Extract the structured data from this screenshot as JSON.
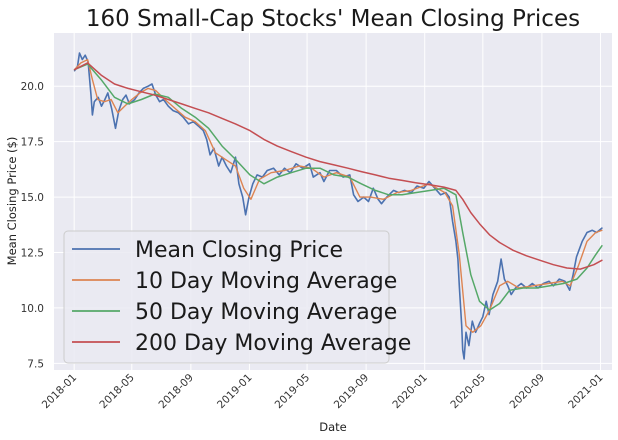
{
  "chart_data": {
    "type": "line",
    "title": "160 Small-Cap Stocks' Mean Closing Prices",
    "xlabel": "Date",
    "ylabel": "Mean Closing Price ($)",
    "xlim": [
      "2017-11-20",
      "2021-01-25"
    ],
    "ylim": [
      7.2,
      22.4
    ],
    "x_ticks": [
      "2018-01",
      "2018-05",
      "2018-09",
      "2019-01",
      "2019-05",
      "2019-09",
      "2020-01",
      "2020-05",
      "2020-09",
      "2021-01"
    ],
    "y_ticks": [
      "7.5",
      "10.0",
      "12.5",
      "15.0",
      "17.5",
      "20.0"
    ],
    "grid": true,
    "legend_position": "lower-left",
    "background": "#eaeaf2",
    "series": [
      {
        "name": "Mean Closing Price",
        "color": "#4c72b0",
        "width": 1.6,
        "points": [
          [
            "2018-01-02",
            20.7
          ],
          [
            "2018-01-08",
            20.9
          ],
          [
            "2018-01-12",
            21.5
          ],
          [
            "2018-01-18",
            21.2
          ],
          [
            "2018-01-24",
            21.4
          ],
          [
            "2018-01-30",
            21.1
          ],
          [
            "2018-02-05",
            19.6
          ],
          [
            "2018-02-08",
            18.7
          ],
          [
            "2018-02-12",
            19.3
          ],
          [
            "2018-02-20",
            19.5
          ],
          [
            "2018-02-27",
            19.1
          ],
          [
            "2018-03-06",
            19.4
          ],
          [
            "2018-03-12",
            19.7
          ],
          [
            "2018-03-20",
            19.0
          ],
          [
            "2018-03-28",
            18.1
          ],
          [
            "2018-04-04",
            18.9
          ],
          [
            "2018-04-12",
            19.4
          ],
          [
            "2018-04-19",
            19.6
          ],
          [
            "2018-04-26",
            19.2
          ],
          [
            "2018-05-07",
            19.4
          ],
          [
            "2018-05-16",
            19.7
          ],
          [
            "2018-05-25",
            19.9
          ],
          [
            "2018-06-04",
            20.0
          ],
          [
            "2018-06-12",
            20.1
          ],
          [
            "2018-06-20",
            19.6
          ],
          [
            "2018-06-28",
            19.3
          ],
          [
            "2018-07-06",
            19.4
          ],
          [
            "2018-07-16",
            19.1
          ],
          [
            "2018-07-26",
            18.9
          ],
          [
            "2018-08-06",
            18.8
          ],
          [
            "2018-08-16",
            18.6
          ],
          [
            "2018-08-27",
            18.3
          ],
          [
            "2018-09-06",
            18.4
          ],
          [
            "2018-09-17",
            18.2
          ],
          [
            "2018-09-27",
            18.0
          ],
          [
            "2018-10-04",
            17.6
          ],
          [
            "2018-10-11",
            16.9
          ],
          [
            "2018-10-19",
            17.2
          ],
          [
            "2018-10-29",
            16.4
          ],
          [
            "2018-11-05",
            16.8
          ],
          [
            "2018-11-14",
            16.4
          ],
          [
            "2018-11-23",
            16.1
          ],
          [
            "2018-12-03",
            16.8
          ],
          [
            "2018-12-10",
            15.6
          ],
          [
            "2018-12-18",
            15.0
          ],
          [
            "2018-12-24",
            14.2
          ],
          [
            "2018-12-31",
            15.0
          ],
          [
            "2019-01-08",
            15.6
          ],
          [
            "2019-01-17",
            16.0
          ],
          [
            "2019-01-28",
            15.9
          ],
          [
            "2019-02-07",
            16.2
          ],
          [
            "2019-02-20",
            16.3
          ],
          [
            "2019-03-04",
            16.0
          ],
          [
            "2019-03-15",
            16.3
          ],
          [
            "2019-03-27",
            16.1
          ],
          [
            "2019-04-08",
            16.5
          ],
          [
            "2019-04-22",
            16.3
          ],
          [
            "2019-05-06",
            16.5
          ],
          [
            "2019-05-14",
            15.9
          ],
          [
            "2019-05-28",
            16.1
          ],
          [
            "2019-06-05",
            15.7
          ],
          [
            "2019-06-17",
            16.2
          ],
          [
            "2019-07-01",
            16.2
          ],
          [
            "2019-07-15",
            15.9
          ],
          [
            "2019-07-29",
            16.0
          ],
          [
            "2019-08-06",
            15.1
          ],
          [
            "2019-08-15",
            14.8
          ],
          [
            "2019-08-27",
            15.0
          ],
          [
            "2019-09-06",
            14.8
          ],
          [
            "2019-09-16",
            15.4
          ],
          [
            "2019-09-26",
            14.9
          ],
          [
            "2019-10-03",
            14.7
          ],
          [
            "2019-10-14",
            15.0
          ],
          [
            "2019-10-28",
            15.3
          ],
          [
            "2019-11-08",
            15.2
          ],
          [
            "2019-11-20",
            15.3
          ],
          [
            "2019-12-04",
            15.2
          ],
          [
            "2019-12-16",
            15.5
          ],
          [
            "2019-12-30",
            15.4
          ],
          [
            "2020-01-10",
            15.7
          ],
          [
            "2020-01-22",
            15.4
          ],
          [
            "2020-02-03",
            15.1
          ],
          [
            "2020-02-14",
            15.2
          ],
          [
            "2020-02-21",
            15.0
          ],
          [
            "2020-02-28",
            13.9
          ],
          [
            "2020-03-06",
            13.0
          ],
          [
            "2020-03-10",
            12.2
          ],
          [
            "2020-03-13",
            11.0
          ],
          [
            "2020-03-18",
            9.2
          ],
          [
            "2020-03-20",
            8.1
          ],
          [
            "2020-03-23",
            7.7
          ],
          [
            "2020-03-27",
            8.9
          ],
          [
            "2020-04-02",
            8.3
          ],
          [
            "2020-04-09",
            9.4
          ],
          [
            "2020-04-16",
            8.9
          ],
          [
            "2020-04-24",
            9.3
          ],
          [
            "2020-05-01",
            9.6
          ],
          [
            "2020-05-08",
            10.3
          ],
          [
            "2020-05-14",
            9.7
          ],
          [
            "2020-05-22",
            10.6
          ],
          [
            "2020-06-01",
            11.2
          ],
          [
            "2020-06-08",
            12.2
          ],
          [
            "2020-06-15",
            11.3
          ],
          [
            "2020-06-22",
            11.0
          ],
          [
            "2020-06-29",
            10.6
          ],
          [
            "2020-07-08",
            10.9
          ],
          [
            "2020-07-20",
            11.1
          ],
          [
            "2020-07-31",
            10.9
          ],
          [
            "2020-08-12",
            11.1
          ],
          [
            "2020-08-24",
            10.9
          ],
          [
            "2020-09-04",
            11.1
          ],
          [
            "2020-09-16",
            11.2
          ],
          [
            "2020-09-25",
            11.0
          ],
          [
            "2020-10-07",
            11.3
          ],
          [
            "2020-10-19",
            11.2
          ],
          [
            "2020-10-29",
            10.8
          ],
          [
            "2020-11-05",
            11.5
          ],
          [
            "2020-11-12",
            12.3
          ],
          [
            "2020-11-24",
            13.0
          ],
          [
            "2020-12-04",
            13.4
          ],
          [
            "2020-12-15",
            13.5
          ],
          [
            "2020-12-24",
            13.4
          ],
          [
            "2021-01-04",
            13.6
          ]
        ]
      },
      {
        "name": "10 Day Moving Average",
        "color": "#dd8452",
        "width": 1.4,
        "points": [
          [
            "2018-01-02",
            20.75
          ],
          [
            "2018-01-15",
            21.05
          ],
          [
            "2018-01-29",
            21.2
          ],
          [
            "2018-02-08",
            20.3
          ],
          [
            "2018-02-19",
            19.4
          ],
          [
            "2018-03-05",
            19.3
          ],
          [
            "2018-03-19",
            19.4
          ],
          [
            "2018-04-02",
            18.8
          ],
          [
            "2018-04-16",
            19.1
          ],
          [
            "2018-05-01",
            19.4
          ],
          [
            "2018-05-18",
            19.7
          ],
          [
            "2018-06-04",
            19.9
          ],
          [
            "2018-06-20",
            19.8
          ],
          [
            "2018-07-09",
            19.4
          ],
          [
            "2018-07-30",
            19.0
          ],
          [
            "2018-08-20",
            18.6
          ],
          [
            "2018-09-10",
            18.4
          ],
          [
            "2018-10-01",
            18.0
          ],
          [
            "2018-10-22",
            17.0
          ],
          [
            "2018-11-12",
            16.7
          ],
          [
            "2018-12-03",
            16.4
          ],
          [
            "2018-12-20",
            15.4
          ],
          [
            "2019-01-04",
            14.9
          ],
          [
            "2019-01-22",
            15.8
          ],
          [
            "2019-02-15",
            16.1
          ],
          [
            "2019-03-15",
            16.2
          ],
          [
            "2019-04-15",
            16.4
          ],
          [
            "2019-05-10",
            16.3
          ],
          [
            "2019-06-05",
            15.9
          ],
          [
            "2019-07-01",
            16.1
          ],
          [
            "2019-07-29",
            15.9
          ],
          [
            "2019-08-19",
            15.0
          ],
          [
            "2019-09-10",
            15.0
          ],
          [
            "2019-10-07",
            14.9
          ],
          [
            "2019-11-04",
            15.2
          ],
          [
            "2019-12-04",
            15.3
          ],
          [
            "2020-01-10",
            15.6
          ],
          [
            "2020-02-12",
            15.2
          ],
          [
            "2020-02-28",
            14.6
          ],
          [
            "2020-03-13",
            12.4
          ],
          [
            "2020-03-27",
            9.2
          ],
          [
            "2020-04-10",
            8.9
          ],
          [
            "2020-04-27",
            9.2
          ],
          [
            "2020-05-15",
            9.9
          ],
          [
            "2020-06-05",
            11.0
          ],
          [
            "2020-06-22",
            11.2
          ],
          [
            "2020-07-15",
            10.9
          ],
          [
            "2020-08-14",
            11.0
          ],
          [
            "2020-09-14",
            11.1
          ],
          [
            "2020-10-14",
            11.2
          ],
          [
            "2020-10-30",
            11.0
          ],
          [
            "2020-11-16",
            11.9
          ],
          [
            "2020-12-04",
            13.0
          ],
          [
            "2020-12-22",
            13.4
          ],
          [
            "2021-01-04",
            13.5
          ]
        ]
      },
      {
        "name": "50 Day Moving Average",
        "color": "#55a868",
        "width": 1.5,
        "points": [
          [
            "2018-01-02",
            20.75
          ],
          [
            "2018-01-29",
            21.0
          ],
          [
            "2018-02-26",
            20.3
          ],
          [
            "2018-03-26",
            19.5
          ],
          [
            "2018-04-23",
            19.2
          ],
          [
            "2018-05-21",
            19.4
          ],
          [
            "2018-06-18",
            19.65
          ],
          [
            "2018-07-16",
            19.5
          ],
          [
            "2018-08-13",
            19.0
          ],
          [
            "2018-09-10",
            18.6
          ],
          [
            "2018-10-08",
            18.1
          ],
          [
            "2018-11-05",
            17.3
          ],
          [
            "2018-12-03",
            16.7
          ],
          [
            "2019-01-02",
            16.0
          ],
          [
            "2019-01-31",
            15.6
          ],
          [
            "2019-02-28",
            15.9
          ],
          [
            "2019-03-29",
            16.1
          ],
          [
            "2019-04-29",
            16.3
          ],
          [
            "2019-05-28",
            16.3
          ],
          [
            "2019-06-26",
            16.0
          ],
          [
            "2019-07-25",
            15.9
          ],
          [
            "2019-08-22",
            15.6
          ],
          [
            "2019-09-20",
            15.3
          ],
          [
            "2019-10-18",
            15.1
          ],
          [
            "2019-11-15",
            15.1
          ],
          [
            "2019-12-13",
            15.2
          ],
          [
            "2020-01-13",
            15.3
          ],
          [
            "2020-02-10",
            15.4
          ],
          [
            "2020-03-06",
            15.1
          ],
          [
            "2020-03-20",
            13.4
          ],
          [
            "2020-04-06",
            11.5
          ],
          [
            "2020-04-24",
            10.3
          ],
          [
            "2020-05-15",
            9.9
          ],
          [
            "2020-06-05",
            10.2
          ],
          [
            "2020-06-26",
            10.8
          ],
          [
            "2020-07-24",
            10.9
          ],
          [
            "2020-08-21",
            10.9
          ],
          [
            "2020-09-18",
            11.0
          ],
          [
            "2020-10-16",
            11.1
          ],
          [
            "2020-11-13",
            11.3
          ],
          [
            "2020-12-04",
            11.8
          ],
          [
            "2020-12-22",
            12.4
          ],
          [
            "2021-01-04",
            12.8
          ]
        ]
      },
      {
        "name": "200 Day Moving Average",
        "color": "#c44e52",
        "width": 1.5,
        "points": [
          [
            "2018-01-02",
            20.75
          ],
          [
            "2018-01-29",
            21.05
          ],
          [
            "2018-02-26",
            20.5
          ],
          [
            "2018-03-26",
            20.1
          ],
          [
            "2018-04-23",
            19.9
          ],
          [
            "2018-05-21",
            19.75
          ],
          [
            "2018-06-18",
            19.6
          ],
          [
            "2018-07-16",
            19.4
          ],
          [
            "2018-08-13",
            19.2
          ],
          [
            "2018-09-10",
            19.0
          ],
          [
            "2018-10-08",
            18.8
          ],
          [
            "2018-11-05",
            18.55
          ],
          [
            "2018-12-03",
            18.3
          ],
          [
            "2019-01-02",
            18.0
          ],
          [
            "2019-01-31",
            17.6
          ],
          [
            "2019-02-28",
            17.3
          ],
          [
            "2019-03-29",
            17.05
          ],
          [
            "2019-04-29",
            16.8
          ],
          [
            "2019-05-28",
            16.6
          ],
          [
            "2019-06-26",
            16.45
          ],
          [
            "2019-07-25",
            16.3
          ],
          [
            "2019-08-22",
            16.15
          ],
          [
            "2019-09-20",
            16.0
          ],
          [
            "2019-10-18",
            15.85
          ],
          [
            "2019-11-15",
            15.75
          ],
          [
            "2019-12-13",
            15.65
          ],
          [
            "2020-01-13",
            15.55
          ],
          [
            "2020-02-10",
            15.45
          ],
          [
            "2020-03-06",
            15.3
          ],
          [
            "2020-03-20",
            14.9
          ],
          [
            "2020-04-06",
            14.3
          ],
          [
            "2020-04-24",
            13.8
          ],
          [
            "2020-05-15",
            13.3
          ],
          [
            "2020-06-05",
            12.95
          ],
          [
            "2020-07-03",
            12.6
          ],
          [
            "2020-07-31",
            12.35
          ],
          [
            "2020-08-28",
            12.15
          ],
          [
            "2020-09-25",
            11.95
          ],
          [
            "2020-10-23",
            11.8
          ],
          [
            "2020-11-20",
            11.75
          ],
          [
            "2020-12-18",
            11.95
          ],
          [
            "2021-01-04",
            12.15
          ]
        ]
      }
    ]
  }
}
